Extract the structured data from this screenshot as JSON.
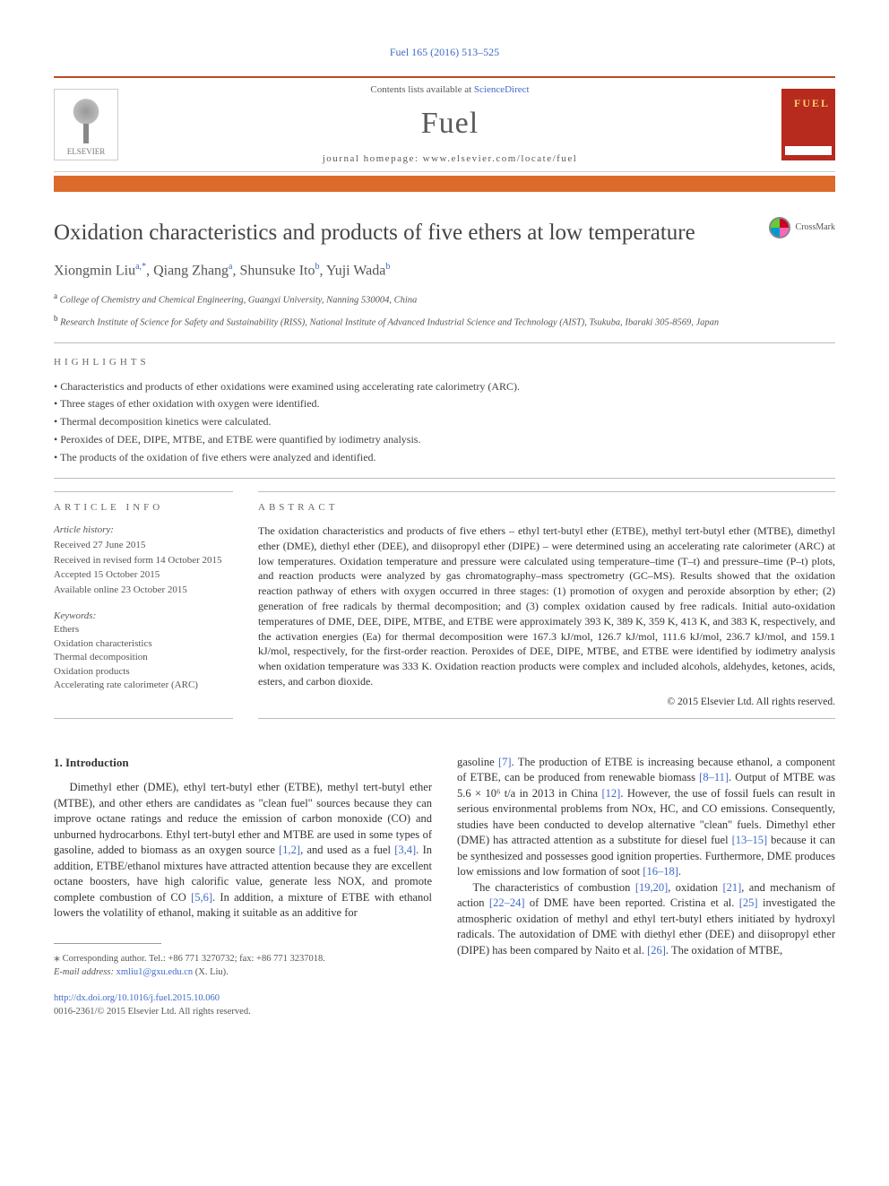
{
  "citation": "Fuel 165 (2016) 513–525",
  "header": {
    "contents_prefix": "Contents lists available at ",
    "sciencedirect": "ScienceDirect",
    "journal": "Fuel",
    "homepage": "journal homepage: www.elsevier.com/locate/fuel",
    "publisher": "ELSEVIER",
    "cover_title": "FUEL"
  },
  "crossmark": "CrossMark",
  "title": "Oxidation characteristics and products of five ethers at low temperature",
  "authors": {
    "a1_name": "Xiongmin Liu",
    "a1_aff": "a,",
    "a1_star": "*",
    "a2_name": ", Qiang Zhang",
    "a2_aff": "a",
    "a3_name": ", Shunsuke Ito",
    "a3_aff": "b",
    "a4_name": ", Yuji Wada",
    "a4_aff": "b"
  },
  "affiliations": {
    "a_sup": "a",
    "a_text": " College of Chemistry and Chemical Engineering, Guangxi University, Nanning 530004, China",
    "b_sup": "b",
    "b_text": " Research Institute of Science for Safety and Sustainability (RISS), National Institute of Advanced Industrial Science and Technology (AIST), Tsukuba, Ibaraki 305-8569, Japan"
  },
  "highlights_label": "HIGHLIGHTS",
  "highlights": [
    "Characteristics and products of ether oxidations were examined using accelerating rate calorimetry (ARC).",
    "Three stages of ether oxidation with oxygen were identified.",
    "Thermal decomposition kinetics were calculated.",
    "Peroxides of DEE, DIPE, MTBE, and ETBE were quantified by iodimetry analysis.",
    "The products of the oxidation of five ethers were analyzed and identified."
  ],
  "article_info_label": "ARTICLE INFO",
  "history": {
    "title": "Article history:",
    "received": "Received 27 June 2015",
    "revised": "Received in revised form 14 October 2015",
    "accepted": "Accepted 15 October 2015",
    "online": "Available online 23 October 2015"
  },
  "keywords_label": "Keywords:",
  "keywords": [
    "Ethers",
    "Oxidation characteristics",
    "Thermal decomposition",
    "Oxidation products",
    "Accelerating rate calorimeter (ARC)"
  ],
  "abstract_label": "ABSTRACT",
  "abstract_text": "The oxidation characteristics and products of five ethers – ethyl tert-butyl ether (ETBE), methyl tert-butyl ether (MTBE), dimethyl ether (DME), diethyl ether (DEE), and diisopropyl ether (DIPE) – were determined using an accelerating rate calorimeter (ARC) at low temperatures. Oxidation temperature and pressure were calculated using temperature–time (T–t) and pressure–time (P–t) plots, and reaction products were analyzed by gas chromatography–mass spectrometry (GC–MS). Results showed that the oxidation reaction pathway of ethers with oxygen occurred in three stages: (1) promotion of oxygen and peroxide absorption by ether; (2) generation of free radicals by thermal decomposition; and (3) complex oxidation caused by free radicals. Initial auto-oxidation temperatures of DME, DEE, DIPE, MTBE, and ETBE were approximately 393 K, 389 K, 359 K, 413 K, and 383 K, respectively, and the activation energies (Ea) for thermal decomposition were 167.3 kJ/mol, 126.7 kJ/mol, 111.6 kJ/mol, 236.7 kJ/mol, and 159.1 kJ/mol, respectively, for the first-order reaction. Peroxides of DEE, DIPE, MTBE, and ETBE were identified by iodimetry analysis when oxidation temperature was 333 K. Oxidation reaction products were complex and included alcohols, aldehydes, ketones, acids, esters, and carbon dioxide.",
  "copyright": "© 2015 Elsevier Ltd. All rights reserved.",
  "intro_heading": "1. Introduction",
  "intro_col1_a": "Dimethyl ether (DME), ethyl tert-butyl ether (ETBE), methyl tert-butyl ether (MTBE), and other ethers are candidates as \"clean fuel\" sources because they can improve octane ratings and reduce the emission of carbon monoxide (CO) and unburned hydrocarbons. Ethyl tert-butyl ether and MTBE are used in some types of gasoline, added to biomass as an oxygen source ",
  "ref_12": "[1,2]",
  "intro_col1_b": ", and used as a fuel ",
  "ref_34": "[3,4]",
  "intro_col1_c": ". In addition, ETBE/ethanol mixtures have attracted attention because they are excellent octane boosters, have high calorific value, generate less NOX, and promote complete combustion of CO ",
  "ref_56": "[5,6]",
  "intro_col1_d": ". In addition, a mixture of ETBE with ethanol lowers the volatility of ethanol, making it suitable as an additive for ",
  "intro_col2_a": "gasoline ",
  "ref_7": "[7]",
  "intro_col2_b": ". The production of ETBE is increasing because ethanol, a component of ETBE, can be produced from renewable biomass ",
  "ref_811": "[8–11]",
  "intro_col2_c": ". Output of MTBE was 5.6 × 10⁶ t/a in 2013 in China ",
  "ref_12b": "[12]",
  "intro_col2_d": ". However, the use of fossil fuels can result in serious environmental problems from NOx, HC, and CO emissions. Consequently, studies have been conducted to develop alternative \"clean\" fuels. Dimethyl ether (DME) has attracted attention as a substitute for diesel fuel ",
  "ref_1315": "[13–15]",
  "intro_col2_e": " because it can be synthesized and possesses good ignition properties. Furthermore, DME produces low emissions and low formation of soot ",
  "ref_1618": "[16–18]",
  "intro_col2_f": ".",
  "intro_col2_p2a": "The characteristics of combustion ",
  "ref_1920": "[19,20]",
  "intro_col2_p2b": ", oxidation ",
  "ref_21": "[21]",
  "intro_col2_p2c": ", and mechanism of action ",
  "ref_2224": "[22–24]",
  "intro_col2_p2d": " of DME have been reported. Cristina et al. ",
  "ref_25": "[25]",
  "intro_col2_p2e": " investigated the atmospheric oxidation of methyl and ethyl tert-butyl ethers initiated by hydroxyl radicals. The autoxidation of DME with diethyl ether (DEE) and diisopropyl ether (DIPE) has been compared by Naito et al. ",
  "ref_26": "[26]",
  "intro_col2_p2f": ". The oxidation of MTBE,",
  "corresponding": {
    "star": "⁎",
    "text": " Corresponding author. Tel.: +86 771 3270732; fax: +86 771 3237018.",
    "email_label": "E-mail address: ",
    "email": "xmliu1@gxu.edu.cn",
    "email_suffix": " (X. Liu)."
  },
  "doi": "http://dx.doi.org/10.1016/j.fuel.2015.10.060",
  "issn": "0016-2361/© 2015 Elsevier Ltd. All rights reserved.",
  "colors": {
    "link": "#4169c7",
    "accent_orange": "#dc6a2b",
    "accent_dark_orange": "#bb4b24",
    "cover_red": "#b72a1e",
    "text": "#333333",
    "gray_text": "#555555"
  }
}
